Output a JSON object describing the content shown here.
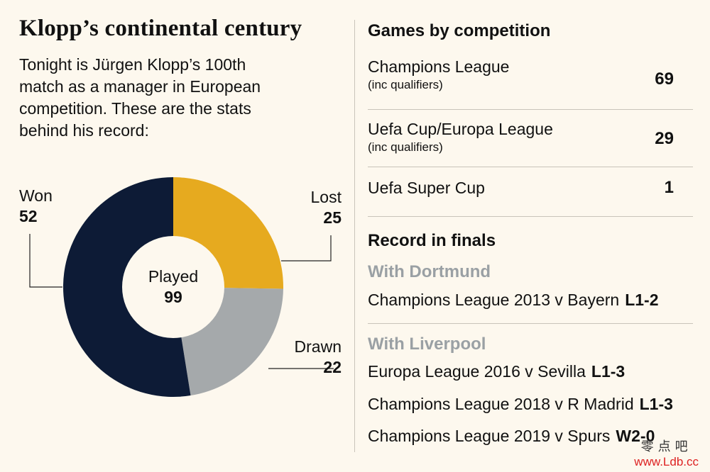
{
  "title": "Klopp’s continental century",
  "intro": "Tonight is Jürgen Klopp’s 100th match as a manager in European competition. These are the stats behind his record:",
  "chart_data": {
    "type": "pie",
    "donut": true,
    "categories": [
      "Won",
      "Lost",
      "Drawn"
    ],
    "values": [
      52,
      25,
      22
    ],
    "colors": [
      "#0d1b36",
      "#e6aa1f",
      "#a5a9ab"
    ],
    "center_label": "Played",
    "center_value": "99"
  },
  "competitions": {
    "title": "Games by competition",
    "rows": [
      {
        "name": "Champions League",
        "sub": "(inc qualifiers)",
        "value": "69"
      },
      {
        "name": "Uefa Cup/Europa League",
        "sub": "(inc qualifiers)",
        "value": "29"
      },
      {
        "name": "Uefa Super Cup",
        "sub": "",
        "value": "1"
      }
    ]
  },
  "finals": {
    "title": "Record in finals",
    "clubs": [
      {
        "name": "With Dortmund",
        "items": [
          {
            "text": "Champions League 2013 v Bayern",
            "result": "L1-2"
          }
        ]
      },
      {
        "name": "With Liverpool",
        "items": [
          {
            "text": "Europa League 2016 v Sevilla",
            "result": "L1-3"
          },
          {
            "text": "Champions League 2018 v R Madrid",
            "result": "L1-3"
          },
          {
            "text": "Champions League 2019 v Spurs",
            "result": "W2-0"
          }
        ]
      }
    ]
  },
  "watermark": {
    "line1": "零点吧",
    "line2": "www.Ldb.cc"
  }
}
